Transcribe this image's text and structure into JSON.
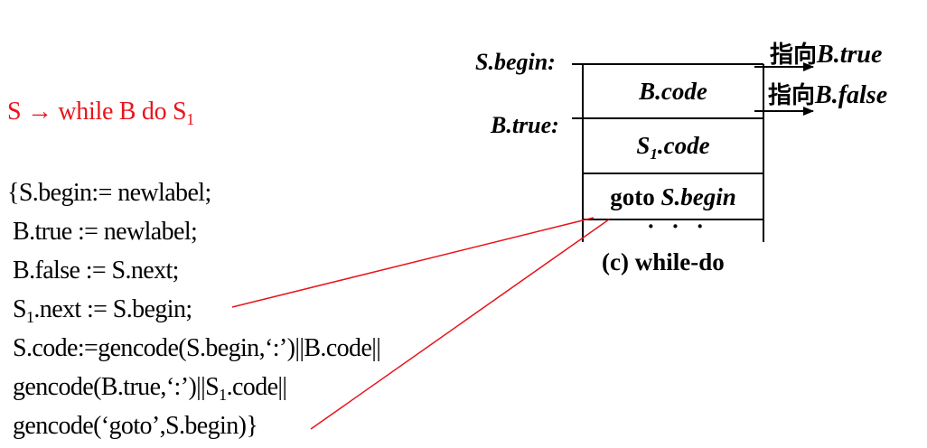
{
  "production": {
    "lhs": "S",
    "arrow": "→",
    "rhs_text": "while B do S",
    "rhs_sub": "1"
  },
  "semantic_rules": {
    "line1": "{S.begin:= newlabel;",
    "line2": "B.true := newlabel;",
    "line3": "B.false := S.next;",
    "line4_pre": "S",
    "line4_sub": "1",
    "line4_post": ".next := S.begin;",
    "line5": "S.code:=gencode(S.begin,‘:’)||B.code||",
    "line6_pre": "gencode(B.true,‘:’)||S",
    "line6_sub": "1",
    "line6_post": ".code||",
    "line7": "gencode(‘goto’,S.begin)}"
  },
  "diagram": {
    "label_sbegin": "S.begin:",
    "label_btrue": "B.true:",
    "cell_bcode": "B.code",
    "cell_s1_pre": "S",
    "cell_s1_sub": "1",
    "cell_s1_post": ".code",
    "cell_goto_kw": "goto",
    "cell_goto_target": "S.begin",
    "ellipsis": "· · ·",
    "caption": "(c) while-do",
    "jump_true_cn": "指向",
    "jump_true_target": "B.true",
    "jump_false_cn": "指向",
    "jump_false_target": "B.false"
  },
  "colors": {
    "production": "#e8141b",
    "connector_lines": "#e8141b",
    "text": "#000000",
    "background": "#ffffff"
  }
}
